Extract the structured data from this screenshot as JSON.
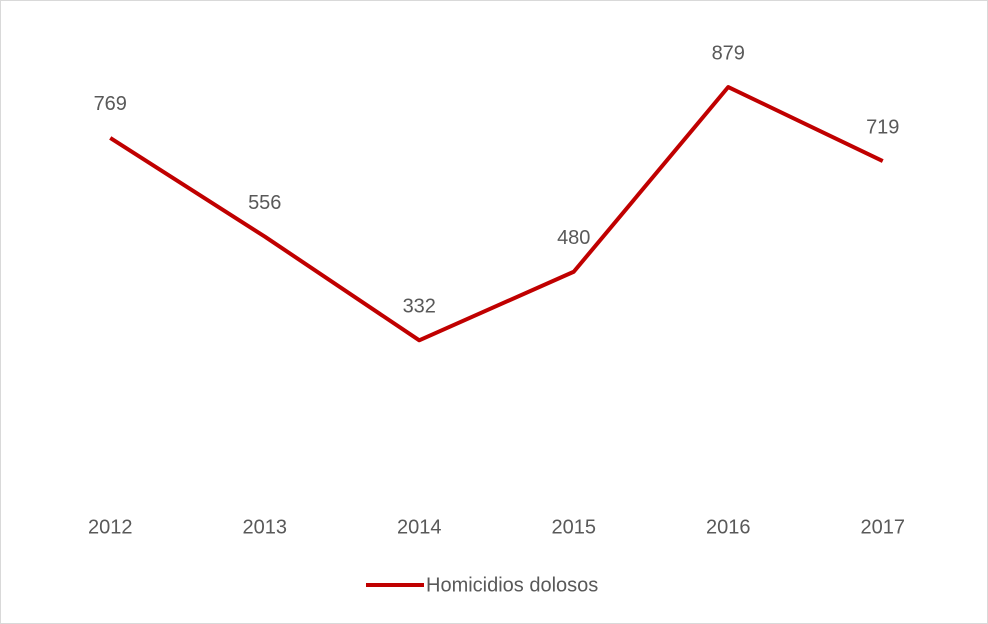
{
  "chart_data": {
    "type": "line",
    "categories": [
      "2012",
      "2013",
      "2014",
      "2015",
      "2016",
      "2017"
    ],
    "series": [
      {
        "name": "Homicidios dolosos",
        "color": "#c00000",
        "values": [
          769,
          556,
          332,
          480,
          879,
          719
        ]
      }
    ],
    "ylim": [
      0,
      1000
    ]
  }
}
